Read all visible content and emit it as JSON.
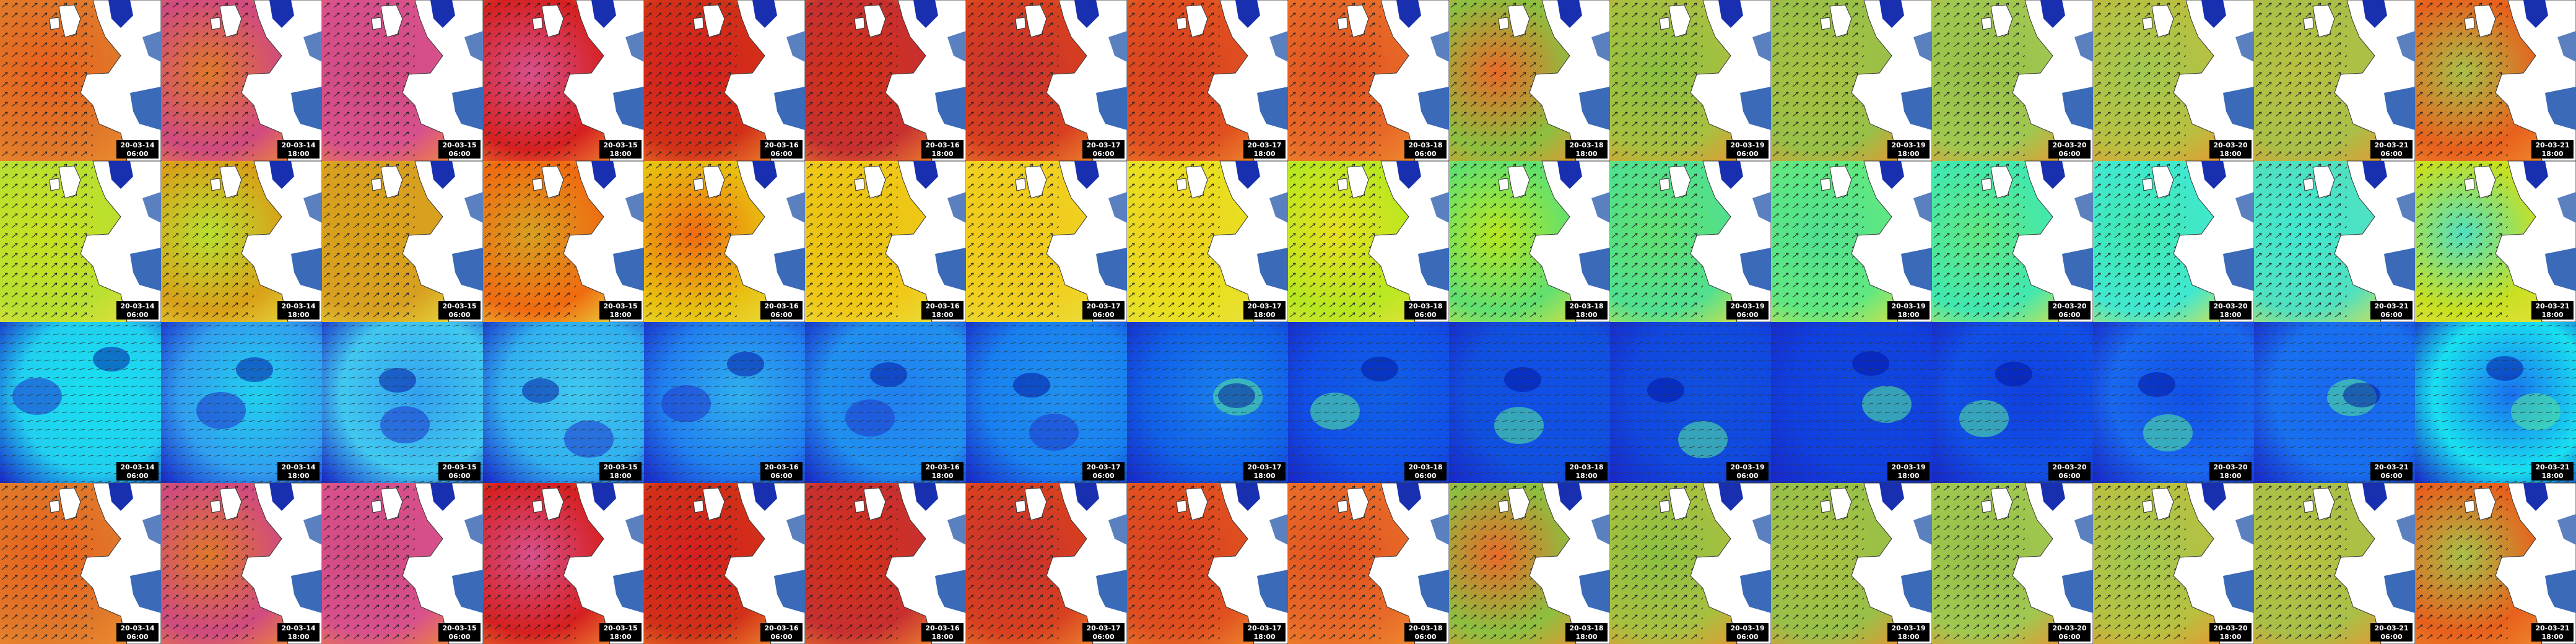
{
  "rows": [
    {
      "tiles": [
        {
          "date": "20-03-14",
          "time": "06:00"
        },
        {
          "date": "20-03-14",
          "time": "18:00"
        },
        {
          "date": "20-03-15",
          "time": "06:00"
        },
        {
          "date": "20-03-15",
          "time": "18:00"
        },
        {
          "date": "20-03-16",
          "time": "06:00"
        },
        {
          "date": "20-03-16",
          "time": "18:00"
        },
        {
          "date": "20-03-17",
          "time": "06:00"
        },
        {
          "date": "20-03-17",
          "time": "18:00"
        },
        {
          "date": "20-03-18",
          "time": "06:00"
        },
        {
          "date": "20-03-18",
          "time": "18:00"
        },
        {
          "date": "20-03-19",
          "time": "06:00"
        },
        {
          "date": "20-03-19",
          "time": "18:00"
        },
        {
          "date": "20-03-20",
          "time": "06:00"
        },
        {
          "date": "20-03-20",
          "time": "18:00"
        },
        {
          "date": "20-03-21",
          "time": "06:00"
        },
        {
          "date": "20-03-21",
          "time": "18:00"
        }
      ]
    },
    {
      "tiles": [
        {
          "date": "20-03-14",
          "time": "06:00"
        },
        {
          "date": "20-03-14",
          "time": "18:00"
        },
        {
          "date": "20-03-15",
          "time": "06:00"
        },
        {
          "date": "20-03-15",
          "time": "18:00"
        },
        {
          "date": "20-03-16",
          "time": "06:00"
        },
        {
          "date": "20-03-16",
          "time": "18:00"
        },
        {
          "date": "20-03-17",
          "time": "06:00"
        },
        {
          "date": "20-03-17",
          "time": "18:00"
        },
        {
          "date": "20-03-18",
          "time": "06:00"
        },
        {
          "date": "20-03-18",
          "time": "18:00"
        },
        {
          "date": "20-03-19",
          "time": "06:00"
        },
        {
          "date": "20-03-19",
          "time": "18:00"
        },
        {
          "date": "20-03-20",
          "time": "06:00"
        },
        {
          "date": "20-03-20",
          "time": "18:00"
        },
        {
          "date": "20-03-21",
          "time": "06:00"
        },
        {
          "date": "20-03-21",
          "time": "18:00"
        }
      ]
    },
    {
      "tiles": [
        {
          "date": "20-03-14",
          "time": "06:00"
        },
        {
          "date": "20-03-14",
          "time": "18:00"
        },
        {
          "date": "20-03-15",
          "time": "06:00"
        },
        {
          "date": "20-03-15",
          "time": "18:00"
        },
        {
          "date": "20-03-16",
          "time": "06:00"
        },
        {
          "date": "20-03-16",
          "time": "18:00"
        },
        {
          "date": "20-03-17",
          "time": "06:00"
        },
        {
          "date": "20-03-17",
          "time": "18:00"
        },
        {
          "date": "20-03-18",
          "time": "06:00"
        },
        {
          "date": "20-03-18",
          "time": "18:00"
        },
        {
          "date": "20-03-19",
          "time": "06:00"
        },
        {
          "date": "20-03-19",
          "time": "18:00"
        },
        {
          "date": "20-03-20",
          "time": "06:00"
        },
        {
          "date": "20-03-20",
          "time": "18:00"
        },
        {
          "date": "20-03-21",
          "time": "06:00"
        },
        {
          "date": "20-03-21",
          "time": "18:00"
        }
      ]
    },
    {
      "tiles": [
        {
          "date": "20-03-14",
          "time": "06:00"
        },
        {
          "date": "20-03-14",
          "time": "18:00"
        },
        {
          "date": "20-03-15",
          "time": "06:00"
        },
        {
          "date": "20-03-15",
          "time": "18:00"
        },
        {
          "date": "20-03-16",
          "time": "06:00"
        },
        {
          "date": "20-03-16",
          "time": "18:00"
        },
        {
          "date": "20-03-17",
          "time": "06:00"
        },
        {
          "date": "20-03-17",
          "time": "18:00"
        },
        {
          "date": "20-03-18",
          "time": "06:00"
        },
        {
          "date": "20-03-18",
          "time": "18:00"
        },
        {
          "date": "20-03-19",
          "time": "06:00"
        },
        {
          "date": "20-03-19",
          "time": "18:00"
        },
        {
          "date": "20-03-20",
          "time": "06:00"
        },
        {
          "date": "20-03-20",
          "time": "18:00"
        },
        {
          "date": "20-03-21",
          "time": "06:00"
        },
        {
          "date": "20-03-21",
          "time": "18:00"
        }
      ]
    }
  ]
}
